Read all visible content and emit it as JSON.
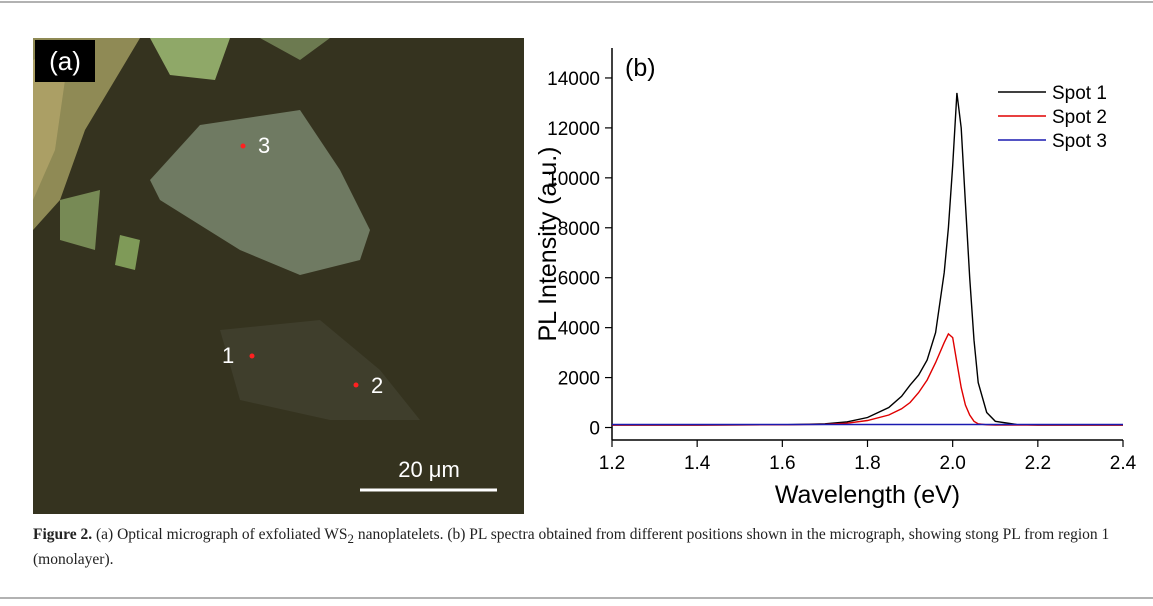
{
  "panel_a": {
    "label": "(a)",
    "spots": [
      "1",
      "2",
      "3"
    ],
    "scale_bar": "20 μm"
  },
  "chart_data": {
    "type": "line",
    "panel_label": "(b)",
    "x_label": "Wavelength (eV)",
    "y_label": "PL Intensity (a.u.)",
    "x": [
      1.2,
      1.4,
      1.6,
      1.7,
      1.75,
      1.8,
      1.85,
      1.88,
      1.9,
      1.92,
      1.94,
      1.96,
      1.98,
      1.99,
      2.0,
      2.01,
      2.02,
      2.03,
      2.04,
      2.05,
      2.06,
      2.08,
      2.1,
      2.15,
      2.2,
      2.4
    ],
    "series": [
      {
        "name": "Spot 1",
        "color": "#000000",
        "values": [
          100,
          100,
          110,
          150,
          220,
          400,
          800,
          1250,
          1700,
          2100,
          2700,
          3800,
          6200,
          8000,
          10500,
          13400,
          12000,
          9000,
          6000,
          3500,
          1800,
          600,
          250,
          120,
          100,
          100
        ]
      },
      {
        "name": "Spot 2",
        "color": "#e00000",
        "values": [
          100,
          100,
          110,
          130,
          170,
          280,
          500,
          750,
          1000,
          1400,
          1900,
          2600,
          3400,
          3750,
          3600,
          2600,
          1600,
          900,
          500,
          250,
          150,
          110,
          100,
          100,
          100,
          100
        ]
      },
      {
        "name": "Spot 3",
        "color": "#1a1ab0",
        "values": [
          120,
          120,
          120,
          120,
          120,
          120,
          120,
          120,
          120,
          120,
          120,
          120,
          120,
          120,
          120,
          120,
          120,
          120,
          120,
          120,
          120,
          120,
          120,
          120,
          120,
          120
        ]
      }
    ],
    "xlim": [
      1.2,
      2.4
    ],
    "xticks": [
      1.2,
      1.4,
      1.6,
      1.8,
      {
        "value": 2,
        "label": "2.0"
      },
      2.2,
      2.4
    ],
    "ylim": [
      -500,
      15200
    ],
    "yticks": [
      0,
      2000,
      4000,
      6000,
      8000,
      10000,
      12000,
      14000
    ],
    "legend": "top-right",
    "grid": false
  },
  "caption": {
    "label": "Figure 2.",
    "parts": [
      "(a) Optical micrograph of exfoliated WS",
      "2",
      " nanoplatelets. (b) PL spectra obtained from different positions shown in the micrograph, showing stong PL from region 1 (monolayer)."
    ]
  }
}
